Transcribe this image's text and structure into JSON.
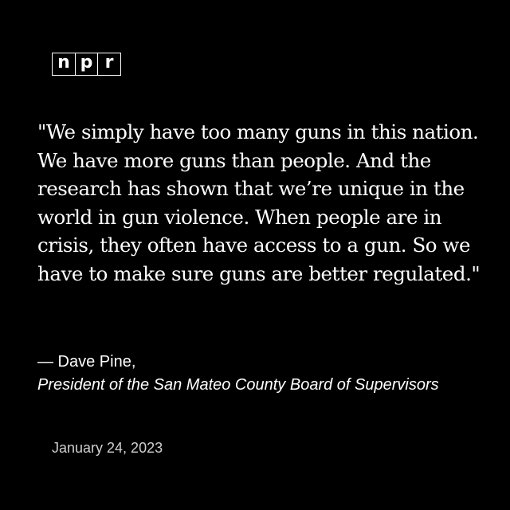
{
  "logo": {
    "letters": [
      "n",
      "p",
      "r"
    ]
  },
  "quote": {
    "text": "\"We simply have too many guns in this nation. We have more guns than people. And the research has shown that we’re unique in the world in gun violence. When people are in crisis, they often have access to a gun. So we have to make sure guns are better regulated.\""
  },
  "attribution": {
    "name": "— Dave Pine,",
    "title": "President of the San Mateo County Board of Supervisors"
  },
  "date": "January 24, 2023",
  "colors": {
    "background": "#000000",
    "text": "#ffffff",
    "date_text": "#cfcfcf"
  }
}
